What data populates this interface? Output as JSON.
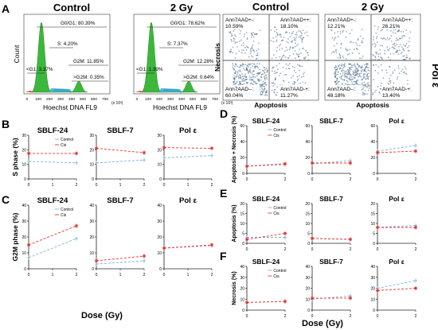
{
  "panel_letters": [
    "A",
    "B",
    "C",
    "D",
    "E",
    "F"
  ],
  "cell_cycle": [
    {
      "title": "Control",
      "g0g1": "G0/G1: 80.39%",
      "s": "S: 4.20%",
      "g2m": "G2M: 11.85%",
      "ltg1": "<G1: 3.37%",
      "gtg2m": ">G2M: 0.35%",
      "xlabel": "Hoechst DNA FL9",
      "ylabel": "Count",
      "x_ticks": [
        "0",
        "100",
        "200",
        "300",
        "400",
        "500",
        "600",
        "700"
      ],
      "x_exp": "(x 10³)"
    },
    {
      "title": "2 Gy",
      "g0g1": "G0/G1: 78.62%",
      "s": "S: 7.37%",
      "g2m": "G2M: 12.28%",
      "ltg1": "<G1: 1.39%",
      "gtg2m": ">G2M: 0.64%",
      "xlabel": "Hoechst DNA FL9",
      "ylabel": "",
      "x_ticks": [
        "0",
        "100",
        "200",
        "300",
        "400",
        "500",
        "600",
        "700"
      ],
      "x_exp": "(x 10³)"
    }
  ],
  "flow": [
    {
      "title": "Control",
      "q_ul": "Ann7AAD+-:",
      "v_ul": "10.59%",
      "q_ur": "Ann7AAD++:",
      "v_ur": "18.10%",
      "q_ll": "Ann7AAD--:",
      "v_ll": "60.04%",
      "q_lr": "Ann7AAD-+:",
      "v_lr": "11.27%",
      "xlabel": "Apoptosis",
      "ylabel": "Necrosis"
    },
    {
      "title": "2 Gy",
      "q_ul": "Ann7AAD+-:",
      "v_ul": "12.21%",
      "q_ur": "Ann7AAD++:",
      "v_ur": "26.21%",
      "q_ll": "Ann7AAD--:",
      "v_ll": "48.18%",
      "q_lr": "Ann7AAD-+:",
      "v_lr": "13.40%",
      "xlabel": "Apoptosis",
      "ylabel": ""
    }
  ],
  "side_label": "Pol ε",
  "legend": {
    "control": "Control",
    "cis": "Cis"
  },
  "colors": {
    "control": "#7ab0e0",
    "cis": "#e8322d",
    "hist_green": "#3bb83b",
    "hist_blue": "#3aa7d6",
    "hist_red": "#d84b4b"
  },
  "left_xlabel": "Dose (Gy)",
  "right_xlabel": "Dose (Gy)",
  "chart_data": [
    {
      "panel": "B",
      "type": "line",
      "title": "SBLF-24",
      "ylabel": "S phase (%)",
      "x": [
        0,
        2
      ],
      "ylim": [
        0,
        30
      ],
      "yticks": [
        "0",
        "10",
        "20",
        "30"
      ],
      "xticks": [
        "0",
        "1",
        "2"
      ],
      "series": [
        {
          "name": "Control",
          "values": [
            12,
            11
          ]
        },
        {
          "name": "Cis",
          "values": [
            17.5,
            17.5
          ]
        }
      ]
    },
    {
      "panel": "B",
      "type": "line",
      "title": "SBLF-7",
      "ylabel": "",
      "x": [
        0,
        2
      ],
      "ylim": [
        0,
        30
      ],
      "yticks": [
        "0",
        "10",
        "20",
        "30"
      ],
      "xticks": [
        "0",
        "1",
        "2"
      ],
      "series": [
        {
          "values": [
            11,
            13
          ]
        },
        {
          "values": [
            21,
            18
          ]
        }
      ]
    },
    {
      "panel": "B",
      "type": "line",
      "title": "Pol ε",
      "ylabel": "",
      "x": [
        0,
        2
      ],
      "ylim": [
        0,
        30
      ],
      "yticks": [
        "0",
        "10",
        "20",
        "30"
      ],
      "xticks": [
        "0",
        "1",
        "2"
      ],
      "series": [
        {
          "values": [
            14.5,
            16
          ]
        },
        {
          "values": [
            21.5,
            21
          ]
        }
      ]
    },
    {
      "panel": "C",
      "type": "line",
      "title": "SBLF-24",
      "ylabel": "G2M phase (%)",
      "x": [
        0,
        2
      ],
      "ylim": [
        0,
        40
      ],
      "yticks": [
        "0",
        "10",
        "20",
        "30",
        "40"
      ],
      "xticks": [
        "0",
        "1",
        "2"
      ],
      "series": [
        {
          "name": "Control",
          "values": [
            7,
            19
          ]
        },
        {
          "name": "Cis",
          "values": [
            15,
            27
          ]
        }
      ]
    },
    {
      "panel": "C",
      "type": "line",
      "title": "SBLF-7",
      "ylabel": "",
      "x": [
        0,
        2
      ],
      "ylim": [
        0,
        40
      ],
      "yticks": [
        "0",
        "10",
        "20",
        "30",
        "40"
      ],
      "xticks": [
        "0",
        "1",
        "2"
      ],
      "series": [
        {
          "values": [
            3,
            5
          ]
        },
        {
          "values": [
            5,
            8
          ]
        }
      ]
    },
    {
      "panel": "C",
      "type": "line",
      "title": "Pol ε",
      "ylabel": "",
      "x": [
        0,
        2
      ],
      "ylim": [
        0,
        40
      ],
      "yticks": [
        "0",
        "10",
        "20",
        "30",
        "40"
      ],
      "xticks": [
        "0",
        "1",
        "2"
      ],
      "series": [
        {
          "values": [
            13,
            14.5
          ]
        },
        {
          "values": [
            13,
            15
          ]
        }
      ]
    },
    {
      "panel": "D",
      "type": "line",
      "title": "SBLF-24",
      "ylabel": "Apoptosis + Necrosis (%)",
      "x": [
        0,
        2
      ],
      "ylim": [
        0,
        60
      ],
      "yticks": [
        "0",
        "20",
        "40",
        "60"
      ],
      "xticks": [
        "0",
        "2"
      ],
      "series": [
        {
          "name": "Control",
          "values": [
            9,
            11
          ]
        },
        {
          "name": "Cis",
          "values": [
            9,
            12
          ]
        }
      ]
    },
    {
      "panel": "D",
      "type": "line",
      "title": "SBLF-7",
      "ylabel": "",
      "x": [
        0,
        2
      ],
      "ylim": [
        0,
        60
      ],
      "yticks": [
        "0",
        "20",
        "40",
        "60"
      ],
      "xticks": [
        "0",
        "2"
      ],
      "series": [
        {
          "values": [
            12,
            16
          ]
        },
        {
          "values": [
            13,
            13
          ]
        }
      ]
    },
    {
      "panel": "D",
      "type": "line",
      "title": "Pol ε",
      "ylabel": "",
      "x": [
        0,
        2
      ],
      "ylim": [
        0,
        60
      ],
      "yticks": [
        "0",
        "20",
        "40",
        "60"
      ],
      "xticks": [
        "0",
        "2"
      ],
      "series": [
        {
          "values": [
            28,
            35
          ]
        },
        {
          "values": [
            26,
            28
          ]
        }
      ]
    },
    {
      "panel": "E",
      "type": "line",
      "title": "SBLF-24",
      "ylabel": "Apoptosis (%)",
      "x": [
        0,
        2
      ],
      "ylim": [
        0,
        20
      ],
      "yticks": [
        "0",
        "5",
        "10",
        "15",
        "20"
      ],
      "xticks": [
        "0",
        "2"
      ],
      "series": [
        {
          "name": "Control",
          "values": [
            3,
            3
          ]
        },
        {
          "name": "Cis",
          "values": [
            2,
            5
          ]
        }
      ]
    },
    {
      "panel": "E",
      "type": "line",
      "title": "SBLF-7",
      "ylabel": "",
      "x": [
        0,
        2
      ],
      "ylim": [
        0,
        20
      ],
      "yticks": [
        "0",
        "5",
        "10",
        "15",
        "20"
      ],
      "xticks": [
        "0",
        "2"
      ],
      "series": [
        {
          "values": [
            2.5,
            2
          ]
        },
        {
          "values": [
            2.5,
            2
          ]
        }
      ]
    },
    {
      "panel": "E",
      "type": "line",
      "title": "Pol ε",
      "ylabel": "",
      "x": [
        0,
        2
      ],
      "ylim": [
        0,
        20
      ],
      "yticks": [
        "0",
        "5",
        "10",
        "15",
        "20"
      ],
      "xticks": [
        "0",
        "2"
      ],
      "series": [
        {
          "values": [
            8,
            9
          ]
        },
        {
          "values": [
            8,
            8
          ]
        }
      ]
    },
    {
      "panel": "F",
      "type": "line",
      "title": "SBLF-24",
      "ylabel": "Necrosis (%)",
      "x": [
        0,
        2
      ],
      "ylim": [
        0,
        40
      ],
      "yticks": [
        "0",
        "10",
        "20",
        "30",
        "40"
      ],
      "xticks": [
        "0",
        "2"
      ],
      "series": [
        {
          "name": "Control",
          "values": [
            7,
            8
          ]
        },
        {
          "name": "Cis",
          "values": [
            7,
            8
          ]
        }
      ]
    },
    {
      "panel": "F",
      "type": "line",
      "title": "SBLF-7",
      "ylabel": "",
      "x": [
        0,
        2
      ],
      "ylim": [
        0,
        40
      ],
      "yticks": [
        "0",
        "10",
        "20",
        "30",
        "40"
      ],
      "xticks": [
        "0",
        "2"
      ],
      "series": [
        {
          "values": [
            10,
            13
          ]
        },
        {
          "values": [
            11,
            11
          ]
        }
      ]
    },
    {
      "panel": "F",
      "type": "line",
      "title": "Pol ε",
      "ylabel": "",
      "x": [
        0,
        2
      ],
      "ylim": [
        0,
        40
      ],
      "yticks": [
        "0",
        "10",
        "20",
        "30",
        "40"
      ],
      "xticks": [
        "0",
        "2"
      ],
      "series": [
        {
          "values": [
            20,
            27
          ]
        },
        {
          "values": [
            18,
            20
          ]
        }
      ]
    }
  ]
}
